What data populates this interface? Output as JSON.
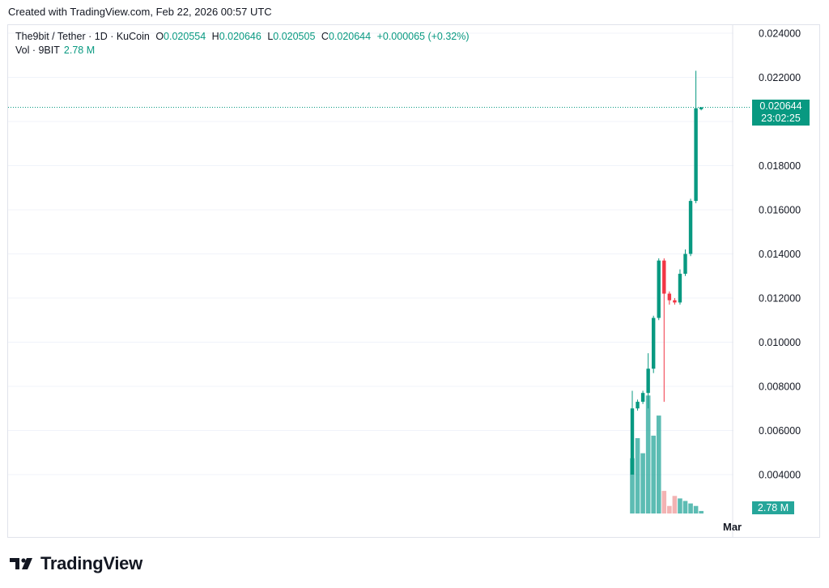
{
  "header": {
    "created_text": "Created with TradingView.com, Feb 22, 2026 00:57 UTC"
  },
  "legend": {
    "symbol": "The9bit / Tether · 1D · KuCoin",
    "o_label": "O",
    "o_value": "0.020554",
    "h_label": "H",
    "h_value": "0.020646",
    "l_label": "L",
    "l_value": "0.020505",
    "c_label": "C",
    "c_value": "0.020644",
    "change": "+0.000065 (+0.32%)",
    "vol_label": "Vol · 9BIT",
    "vol_value": "2.78 M"
  },
  "price_tag": {
    "price": "0.020644",
    "countdown": "23:02:25"
  },
  "volume_tag": "2.78 M",
  "footer": {
    "brand": "TradingView"
  },
  "colors": {
    "up": "#089981",
    "down": "#f23645",
    "vol_up": "#26a69a",
    "vol_down": "#ef9a9a",
    "grid": "#f0f3fa"
  },
  "chart_data": {
    "type": "candlestick",
    "ylim": [
      0.0025,
      0.0245
    ],
    "yticks": [
      "0.024000",
      "0.022000",
      "0.018000",
      "0.016000",
      "0.014000",
      "0.012000",
      "0.010000",
      "0.008000",
      "0.006000",
      "0.004000"
    ],
    "xticks": [
      "Mar"
    ],
    "last_price": 0.020644,
    "candles": [
      {
        "o": 0.004,
        "h": 0.0078,
        "l": 0.004,
        "c": 0.007,
        "vol": 0.22
      },
      {
        "o": 0.007,
        "h": 0.0074,
        "l": 0.0069,
        "c": 0.0073,
        "vol": 0.3
      },
      {
        "o": 0.0073,
        "h": 0.0078,
        "l": 0.0072,
        "c": 0.0077,
        "vol": 0.24
      },
      {
        "o": 0.0077,
        "h": 0.0095,
        "l": 0.007,
        "c": 0.0088,
        "vol": 0.47
      },
      {
        "o": 0.0088,
        "h": 0.0112,
        "l": 0.0086,
        "c": 0.0111,
        "vol": 0.31
      },
      {
        "o": 0.0111,
        "h": 0.0138,
        "l": 0.011,
        "c": 0.0137,
        "vol": 0.39
      },
      {
        "o": 0.0137,
        "h": 0.0138,
        "l": 0.0073,
        "c": 0.0122,
        "vol": 0.09
      },
      {
        "o": 0.0122,
        "h": 0.0123,
        "l": 0.0117,
        "c": 0.0119,
        "vol": 0.03
      },
      {
        "o": 0.0119,
        "h": 0.012,
        "l": 0.0117,
        "c": 0.0118,
        "vol": 0.07
      },
      {
        "o": 0.0118,
        "h": 0.0133,
        "l": 0.0117,
        "c": 0.0131,
        "vol": 0.06
      },
      {
        "o": 0.0131,
        "h": 0.0142,
        "l": 0.013,
        "c": 0.014,
        "vol": 0.05
      },
      {
        "o": 0.014,
        "h": 0.0165,
        "l": 0.0139,
        "c": 0.0164,
        "vol": 0.04
      },
      {
        "o": 0.0164,
        "h": 0.0223,
        "l": 0.0163,
        "c": 0.0206,
        "vol": 0.03
      },
      {
        "o": 0.020554,
        "h": 0.020646,
        "l": 0.020505,
        "c": 0.020644,
        "vol": 0.01
      }
    ]
  }
}
